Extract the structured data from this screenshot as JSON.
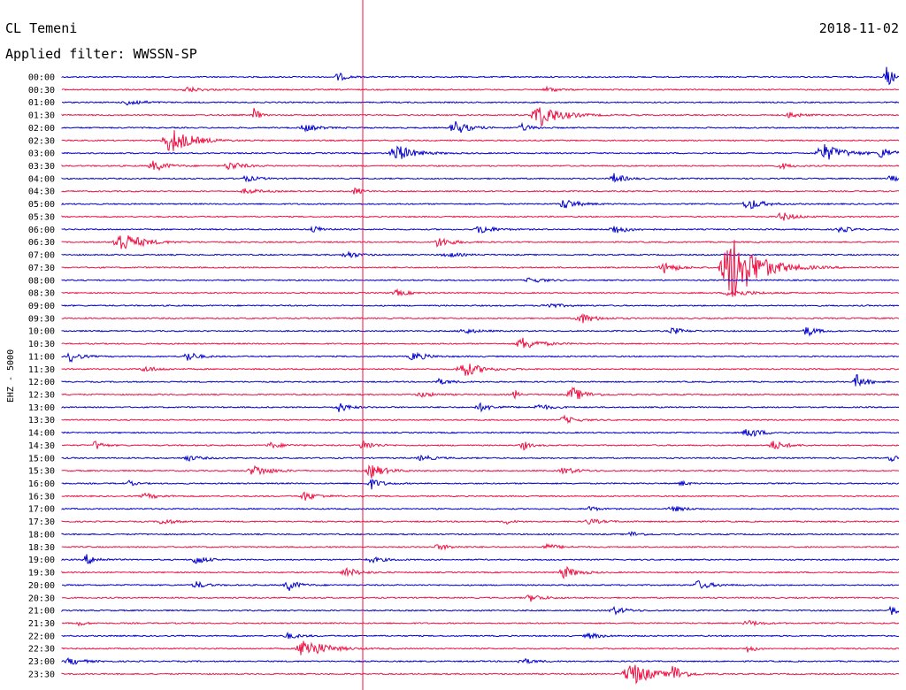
{
  "header": {
    "station": "CL Temeni",
    "date": "2018-11-02",
    "filter": "Applied filter: WWSSN-SP"
  },
  "chart_data": {
    "type": "line",
    "title": "",
    "ylabel": "EHZ - 5000",
    "colors": [
      "#0000cc",
      "#ee1144"
    ],
    "marker_color": "#ee1144",
    "marker_time": "07:40",
    "rows": [
      {
        "label": "00:00",
        "events": [
          {
            "x": 0.33,
            "a": 5,
            "w": 0.012
          },
          {
            "x": 0.985,
            "a": 12,
            "w": 0.012
          }
        ]
      },
      {
        "label": "00:30",
        "events": [
          {
            "x": 0.15,
            "a": 3,
            "w": 0.02
          },
          {
            "x": 0.58,
            "a": 3,
            "w": 0.015
          }
        ]
      },
      {
        "label": "01:00",
        "events": [
          {
            "x": 0.08,
            "a": 4,
            "w": 0.02
          }
        ]
      },
      {
        "label": "01:30",
        "events": [
          {
            "x": 0.23,
            "a": 14,
            "w": 0.005
          },
          {
            "x": 0.57,
            "a": 14,
            "w": 0.03
          },
          {
            "x": 0.87,
            "a": 4,
            "w": 0.015
          }
        ]
      },
      {
        "label": "02:00",
        "events": [
          {
            "x": 0.29,
            "a": 4,
            "w": 0.02
          },
          {
            "x": 0.47,
            "a": 8,
            "w": 0.02
          },
          {
            "x": 0.55,
            "a": 4,
            "w": 0.015
          }
        ]
      },
      {
        "label": "02:30",
        "events": [
          {
            "x": 0.13,
            "a": 15,
            "w": 0.03
          }
        ]
      },
      {
        "label": "03:00",
        "events": [
          {
            "x": 0.4,
            "a": 10,
            "w": 0.025
          },
          {
            "x": 0.91,
            "a": 10,
            "w": 0.03
          },
          {
            "x": 0.98,
            "a": 7,
            "w": 0.015
          }
        ]
      },
      {
        "label": "03:30",
        "events": [
          {
            "x": 0.11,
            "a": 6,
            "w": 0.02
          },
          {
            "x": 0.2,
            "a": 5,
            "w": 0.02
          },
          {
            "x": 0.86,
            "a": 3,
            "w": 0.015
          }
        ]
      },
      {
        "label": "04:00",
        "events": [
          {
            "x": 0.22,
            "a": 3,
            "w": 0.02
          },
          {
            "x": 0.66,
            "a": 6,
            "w": 0.015
          },
          {
            "x": 0.99,
            "a": 4,
            "w": 0.01
          }
        ]
      },
      {
        "label": "04:30",
        "events": [
          {
            "x": 0.22,
            "a": 3,
            "w": 0.02
          },
          {
            "x": 0.35,
            "a": 5,
            "w": 0.01
          }
        ]
      },
      {
        "label": "05:00",
        "events": [
          {
            "x": 0.6,
            "a": 6,
            "w": 0.02
          },
          {
            "x": 0.82,
            "a": 7,
            "w": 0.02
          }
        ]
      },
      {
        "label": "05:30",
        "events": [
          {
            "x": 0.86,
            "a": 5,
            "w": 0.02
          }
        ]
      },
      {
        "label": "06:00",
        "events": [
          {
            "x": 0.3,
            "a": 4,
            "w": 0.015
          },
          {
            "x": 0.5,
            "a": 5,
            "w": 0.02
          },
          {
            "x": 0.66,
            "a": 5,
            "w": 0.02
          },
          {
            "x": 0.93,
            "a": 4,
            "w": 0.015
          }
        ]
      },
      {
        "label": "06:30",
        "events": [
          {
            "x": 0.07,
            "a": 12,
            "w": 0.03
          },
          {
            "x": 0.45,
            "a": 6,
            "w": 0.02
          }
        ]
      },
      {
        "label": "07:00",
        "events": [
          {
            "x": 0.34,
            "a": 5,
            "w": 0.015
          },
          {
            "x": 0.46,
            "a": 3,
            "w": 0.02
          }
        ]
      },
      {
        "label": "07:30",
        "events": [
          {
            "x": 0.72,
            "a": 6,
            "w": 0.02
          },
          {
            "x": 0.8,
            "a": 40,
            "w": 0.04
          }
        ]
      },
      {
        "label": "08:00",
        "events": [
          {
            "x": 0.56,
            "a": 3,
            "w": 0.02
          }
        ]
      },
      {
        "label": "08:30",
        "events": [
          {
            "x": 0.4,
            "a": 3,
            "w": 0.02
          },
          {
            "x": 0.8,
            "a": 4,
            "w": 0.03
          }
        ]
      },
      {
        "label": "09:00",
        "events": [
          {
            "x": 0.58,
            "a": 3,
            "w": 0.02
          }
        ]
      },
      {
        "label": "09:30",
        "events": [
          {
            "x": 0.62,
            "a": 6,
            "w": 0.02
          }
        ]
      },
      {
        "label": "10:00",
        "events": [
          {
            "x": 0.48,
            "a": 3,
            "w": 0.02
          },
          {
            "x": 0.73,
            "a": 4,
            "w": 0.015
          },
          {
            "x": 0.89,
            "a": 6,
            "w": 0.015
          }
        ]
      },
      {
        "label": "10:30",
        "events": [
          {
            "x": 0.55,
            "a": 7,
            "w": 0.025
          }
        ]
      },
      {
        "label": "11:00",
        "events": [
          {
            "x": 0.01,
            "a": 6,
            "w": 0.015
          },
          {
            "x": 0.15,
            "a": 6,
            "w": 0.015
          },
          {
            "x": 0.42,
            "a": 5,
            "w": 0.02
          }
        ]
      },
      {
        "label": "11:30",
        "events": [
          {
            "x": 0.1,
            "a": 3,
            "w": 0.02
          },
          {
            "x": 0.48,
            "a": 9,
            "w": 0.025
          }
        ]
      },
      {
        "label": "12:00",
        "events": [
          {
            "x": 0.45,
            "a": 3,
            "w": 0.02
          },
          {
            "x": 0.95,
            "a": 8,
            "w": 0.015
          }
        ]
      },
      {
        "label": "12:30",
        "events": [
          {
            "x": 0.43,
            "a": 3,
            "w": 0.02
          },
          {
            "x": 0.54,
            "a": 8,
            "w": 0.005
          },
          {
            "x": 0.61,
            "a": 8,
            "w": 0.02
          }
        ]
      },
      {
        "label": "13:00",
        "events": [
          {
            "x": 0.33,
            "a": 6,
            "w": 0.015
          },
          {
            "x": 0.5,
            "a": 4,
            "w": 0.02
          },
          {
            "x": 0.57,
            "a": 3,
            "w": 0.02
          }
        ]
      },
      {
        "label": "13:30",
        "events": [
          {
            "x": 0.6,
            "a": 4,
            "w": 0.02
          }
        ]
      },
      {
        "label": "14:00",
        "events": [
          {
            "x": 0.82,
            "a": 6,
            "w": 0.02
          }
        ]
      },
      {
        "label": "14:30",
        "events": [
          {
            "x": 0.04,
            "a": 6,
            "w": 0.01
          },
          {
            "x": 0.25,
            "a": 3,
            "w": 0.02
          },
          {
            "x": 0.36,
            "a": 6,
            "w": 0.015
          },
          {
            "x": 0.55,
            "a": 6,
            "w": 0.01
          },
          {
            "x": 0.85,
            "a": 5,
            "w": 0.02
          }
        ]
      },
      {
        "label": "15:00",
        "events": [
          {
            "x": 0.15,
            "a": 3,
            "w": 0.02
          },
          {
            "x": 0.43,
            "a": 3,
            "w": 0.02
          },
          {
            "x": 0.99,
            "a": 4,
            "w": 0.01
          }
        ]
      },
      {
        "label": "15:30",
        "events": [
          {
            "x": 0.23,
            "a": 6,
            "w": 0.025
          },
          {
            "x": 0.37,
            "a": 8,
            "w": 0.02
          },
          {
            "x": 0.6,
            "a": 4,
            "w": 0.02
          }
        ]
      },
      {
        "label": "16:00",
        "events": [
          {
            "x": 0.08,
            "a": 3,
            "w": 0.01
          },
          {
            "x": 0.37,
            "a": 6,
            "w": 0.015
          },
          {
            "x": 0.74,
            "a": 3,
            "w": 0.01
          }
        ]
      },
      {
        "label": "16:30",
        "events": [
          {
            "x": 0.1,
            "a": 3,
            "w": 0.02
          },
          {
            "x": 0.29,
            "a": 5,
            "w": 0.02
          }
        ]
      },
      {
        "label": "17:00",
        "events": [
          {
            "x": 0.63,
            "a": 4,
            "w": 0.01
          },
          {
            "x": 0.73,
            "a": 3,
            "w": 0.02
          }
        ]
      },
      {
        "label": "17:30",
        "events": [
          {
            "x": 0.12,
            "a": 4,
            "w": 0.015
          },
          {
            "x": 0.53,
            "a": 3,
            "w": 0.01
          },
          {
            "x": 0.63,
            "a": 3,
            "w": 0.02
          }
        ]
      },
      {
        "label": "18:00",
        "events": [
          {
            "x": 0.68,
            "a": 3,
            "w": 0.015
          }
        ]
      },
      {
        "label": "18:30",
        "events": [
          {
            "x": 0.45,
            "a": 3,
            "w": 0.02
          },
          {
            "x": 0.58,
            "a": 3,
            "w": 0.02
          }
        ]
      },
      {
        "label": "19:00",
        "events": [
          {
            "x": 0.03,
            "a": 6,
            "w": 0.015
          },
          {
            "x": 0.16,
            "a": 6,
            "w": 0.015
          },
          {
            "x": 0.37,
            "a": 3,
            "w": 0.02
          }
        ]
      },
      {
        "label": "19:30",
        "events": [
          {
            "x": 0.34,
            "a": 5,
            "w": 0.02
          },
          {
            "x": 0.6,
            "a": 7,
            "w": 0.02
          }
        ]
      },
      {
        "label": "20:00",
        "events": [
          {
            "x": 0.16,
            "a": 4,
            "w": 0.015
          },
          {
            "x": 0.27,
            "a": 7,
            "w": 0.015
          },
          {
            "x": 0.76,
            "a": 5,
            "w": 0.02
          }
        ]
      },
      {
        "label": "20:30",
        "events": [
          {
            "x": 0.56,
            "a": 4,
            "w": 0.02
          }
        ]
      },
      {
        "label": "21:00",
        "events": [
          {
            "x": 0.66,
            "a": 4,
            "w": 0.02
          },
          {
            "x": 0.99,
            "a": 6,
            "w": 0.01
          }
        ]
      },
      {
        "label": "21:30",
        "events": [
          {
            "x": 0.02,
            "a": 3,
            "w": 0.01
          },
          {
            "x": 0.82,
            "a": 3,
            "w": 0.02
          }
        ]
      },
      {
        "label": "22:00",
        "events": [
          {
            "x": 0.27,
            "a": 3,
            "w": 0.02
          },
          {
            "x": 0.63,
            "a": 3,
            "w": 0.02
          }
        ]
      },
      {
        "label": "22:30",
        "events": [
          {
            "x": 0.29,
            "a": 12,
            "w": 0.03
          },
          {
            "x": 0.82,
            "a": 5,
            "w": 0.01
          }
        ]
      },
      {
        "label": "23:00",
        "events": [
          {
            "x": 0.01,
            "a": 4,
            "w": 0.02
          },
          {
            "x": 0.55,
            "a": 3,
            "w": 0.02
          }
        ]
      },
      {
        "label": "23:30",
        "events": [
          {
            "x": 0.68,
            "a": 14,
            "w": 0.03
          },
          {
            "x": 0.73,
            "a": 10,
            "w": 0.015
          }
        ]
      }
    ]
  }
}
